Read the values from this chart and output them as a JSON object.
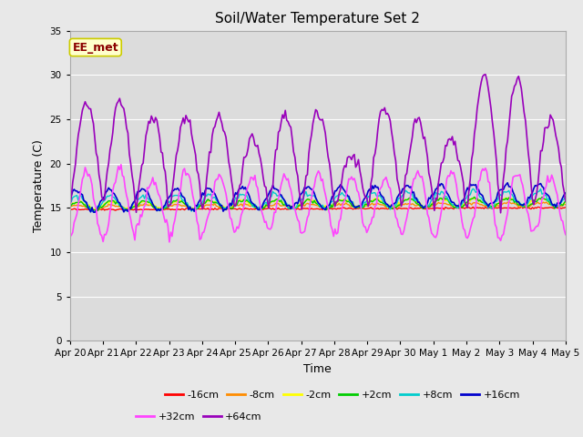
{
  "title": "Soil/Water Temperature Set 2",
  "xlabel": "Time",
  "ylabel": "Temperature (C)",
  "ylim": [
    0,
    35
  ],
  "yticks": [
    0,
    5,
    10,
    15,
    20,
    25,
    30,
    35
  ],
  "x_tick_labels": [
    "Apr 20",
    "Apr 21",
    "Apr 22",
    "Apr 23",
    "Apr 24",
    "Apr 25",
    "Apr 26",
    "Apr 27",
    "Apr 28",
    "Apr 29",
    "Apr 30",
    "May 1",
    "May 2",
    "May 3",
    "May 4",
    "May 5"
  ],
  "annotation_text": "EE_met",
  "annotation_color": "#8B0000",
  "annotation_bg": "#FFFFCC",
  "annotation_edge": "#CCCC00",
  "fig_facecolor": "#E8E8E8",
  "plot_bg": "#DCDCDC",
  "grid_color": "#FFFFFF",
  "series_colors": {
    "-16cm": "#FF0000",
    "-8cm": "#FF8C00",
    "-2cm": "#FFFF00",
    "+2cm": "#00CC00",
    "+8cm": "#00CCCC",
    "+16cm": "#0000CC",
    "+32cm": "#FF44FF",
    "+64cm": "#9900BB"
  },
  "series_linewidths": {
    "-16cm": 1.0,
    "-8cm": 1.0,
    "-2cm": 1.0,
    "+2cm": 1.0,
    "+8cm": 1.0,
    "+16cm": 1.2,
    "+32cm": 1.2,
    "+64cm": 1.2
  }
}
